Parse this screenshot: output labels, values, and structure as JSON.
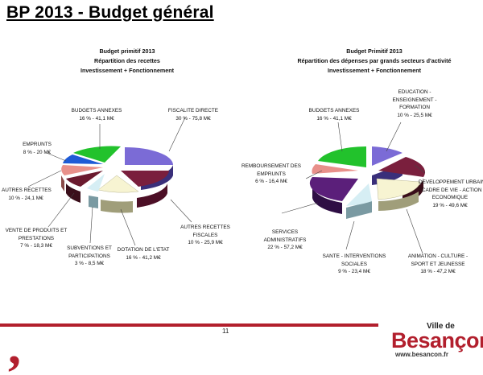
{
  "page": {
    "title": "BP 2013 - Budget général",
    "page_number": "11"
  },
  "left_chart": {
    "title_lines": [
      "Budget primitif 2013",
      "Répartition des recettes",
      "Investissement + Fonctionnement"
    ],
    "labels": {
      "budgets_annexes": [
        "BUDGETS ANNEXES",
        "16 % - 41,1 M€"
      ],
      "fiscalite_directe": [
        "FISCALITE DIRECTE",
        "30 % - 75,8 M€"
      ],
      "emprunts": [
        "EMPRUNTS",
        "8 % - 20 M€"
      ],
      "autres_recettes": [
        "AUTRES RECETTES",
        "10 % - 24,1 M€"
      ],
      "autres_recettes_fiscales": [
        "AUTRES RECETTES",
        "FISCALES",
        "10 % - 25,9 M€"
      ],
      "vente_produits": [
        "VENTE DE PRODUITS ET",
        "PRESTATIONS",
        "7 % - 18,3 M€"
      ],
      "subventions": [
        "SUBVENTIONS ET",
        "PARTICIPATIONS",
        "3 % - 8,5 M€"
      ],
      "dotation_etat": [
        "DOTATION DE L'ETAT",
        "16 % - 41,2 M€"
      ]
    }
  },
  "right_chart": {
    "title_lines": [
      "Budget Primitif 2013",
      "Répartition des dépenses par grands secteurs d'activité",
      "Investissement + Fonctionnement"
    ],
    "labels": {
      "budgets_annexes": [
        "BUDGETS ANNEXES",
        "16 % - 41,1 M€"
      ],
      "education": [
        "EDUCATION -",
        "ENSEIGNEMENT -",
        "FORMATION",
        "10 % - 25,5 M€"
      ],
      "remboursement": [
        "REMBOURSEMENT DES",
        "EMPRUNTS",
        "6 % - 16,4 M€"
      ],
      "developpement": [
        "DEVELOPPEMENT URBAIN",
        "- CADRE DE VIE - ACTION",
        "ECONOMIQUE",
        "19 % - 49,6 M€"
      ],
      "services_admin": [
        "SERVICES",
        "ADMINISTRATIFS",
        "22 % - 57,2 M€"
      ],
      "sante": [
        "SANTE - INTERVENTIONS",
        "SOCIALES",
        "9 % - 23,4 M€"
      ],
      "animation": [
        "ANIMATION - CULTURE -",
        "SPORT ET JEUNESSE",
        "18 % - 47,2 M€"
      ]
    }
  },
  "colors": {
    "green": "#22c22c",
    "purple": "#7b6bd6",
    "maroon": "#7a1f3d",
    "cream": "#f7f4d2",
    "lightblue": "#d6eef4",
    "blue": "#1e5bd6",
    "salmon": "#e8908a",
    "darkpurple": "#5b1f7a",
    "brand_red": "#b21f2d"
  },
  "logo": {
    "ville": "Ville de",
    "city": "Besançon",
    "url": "www.besancon.fr"
  }
}
